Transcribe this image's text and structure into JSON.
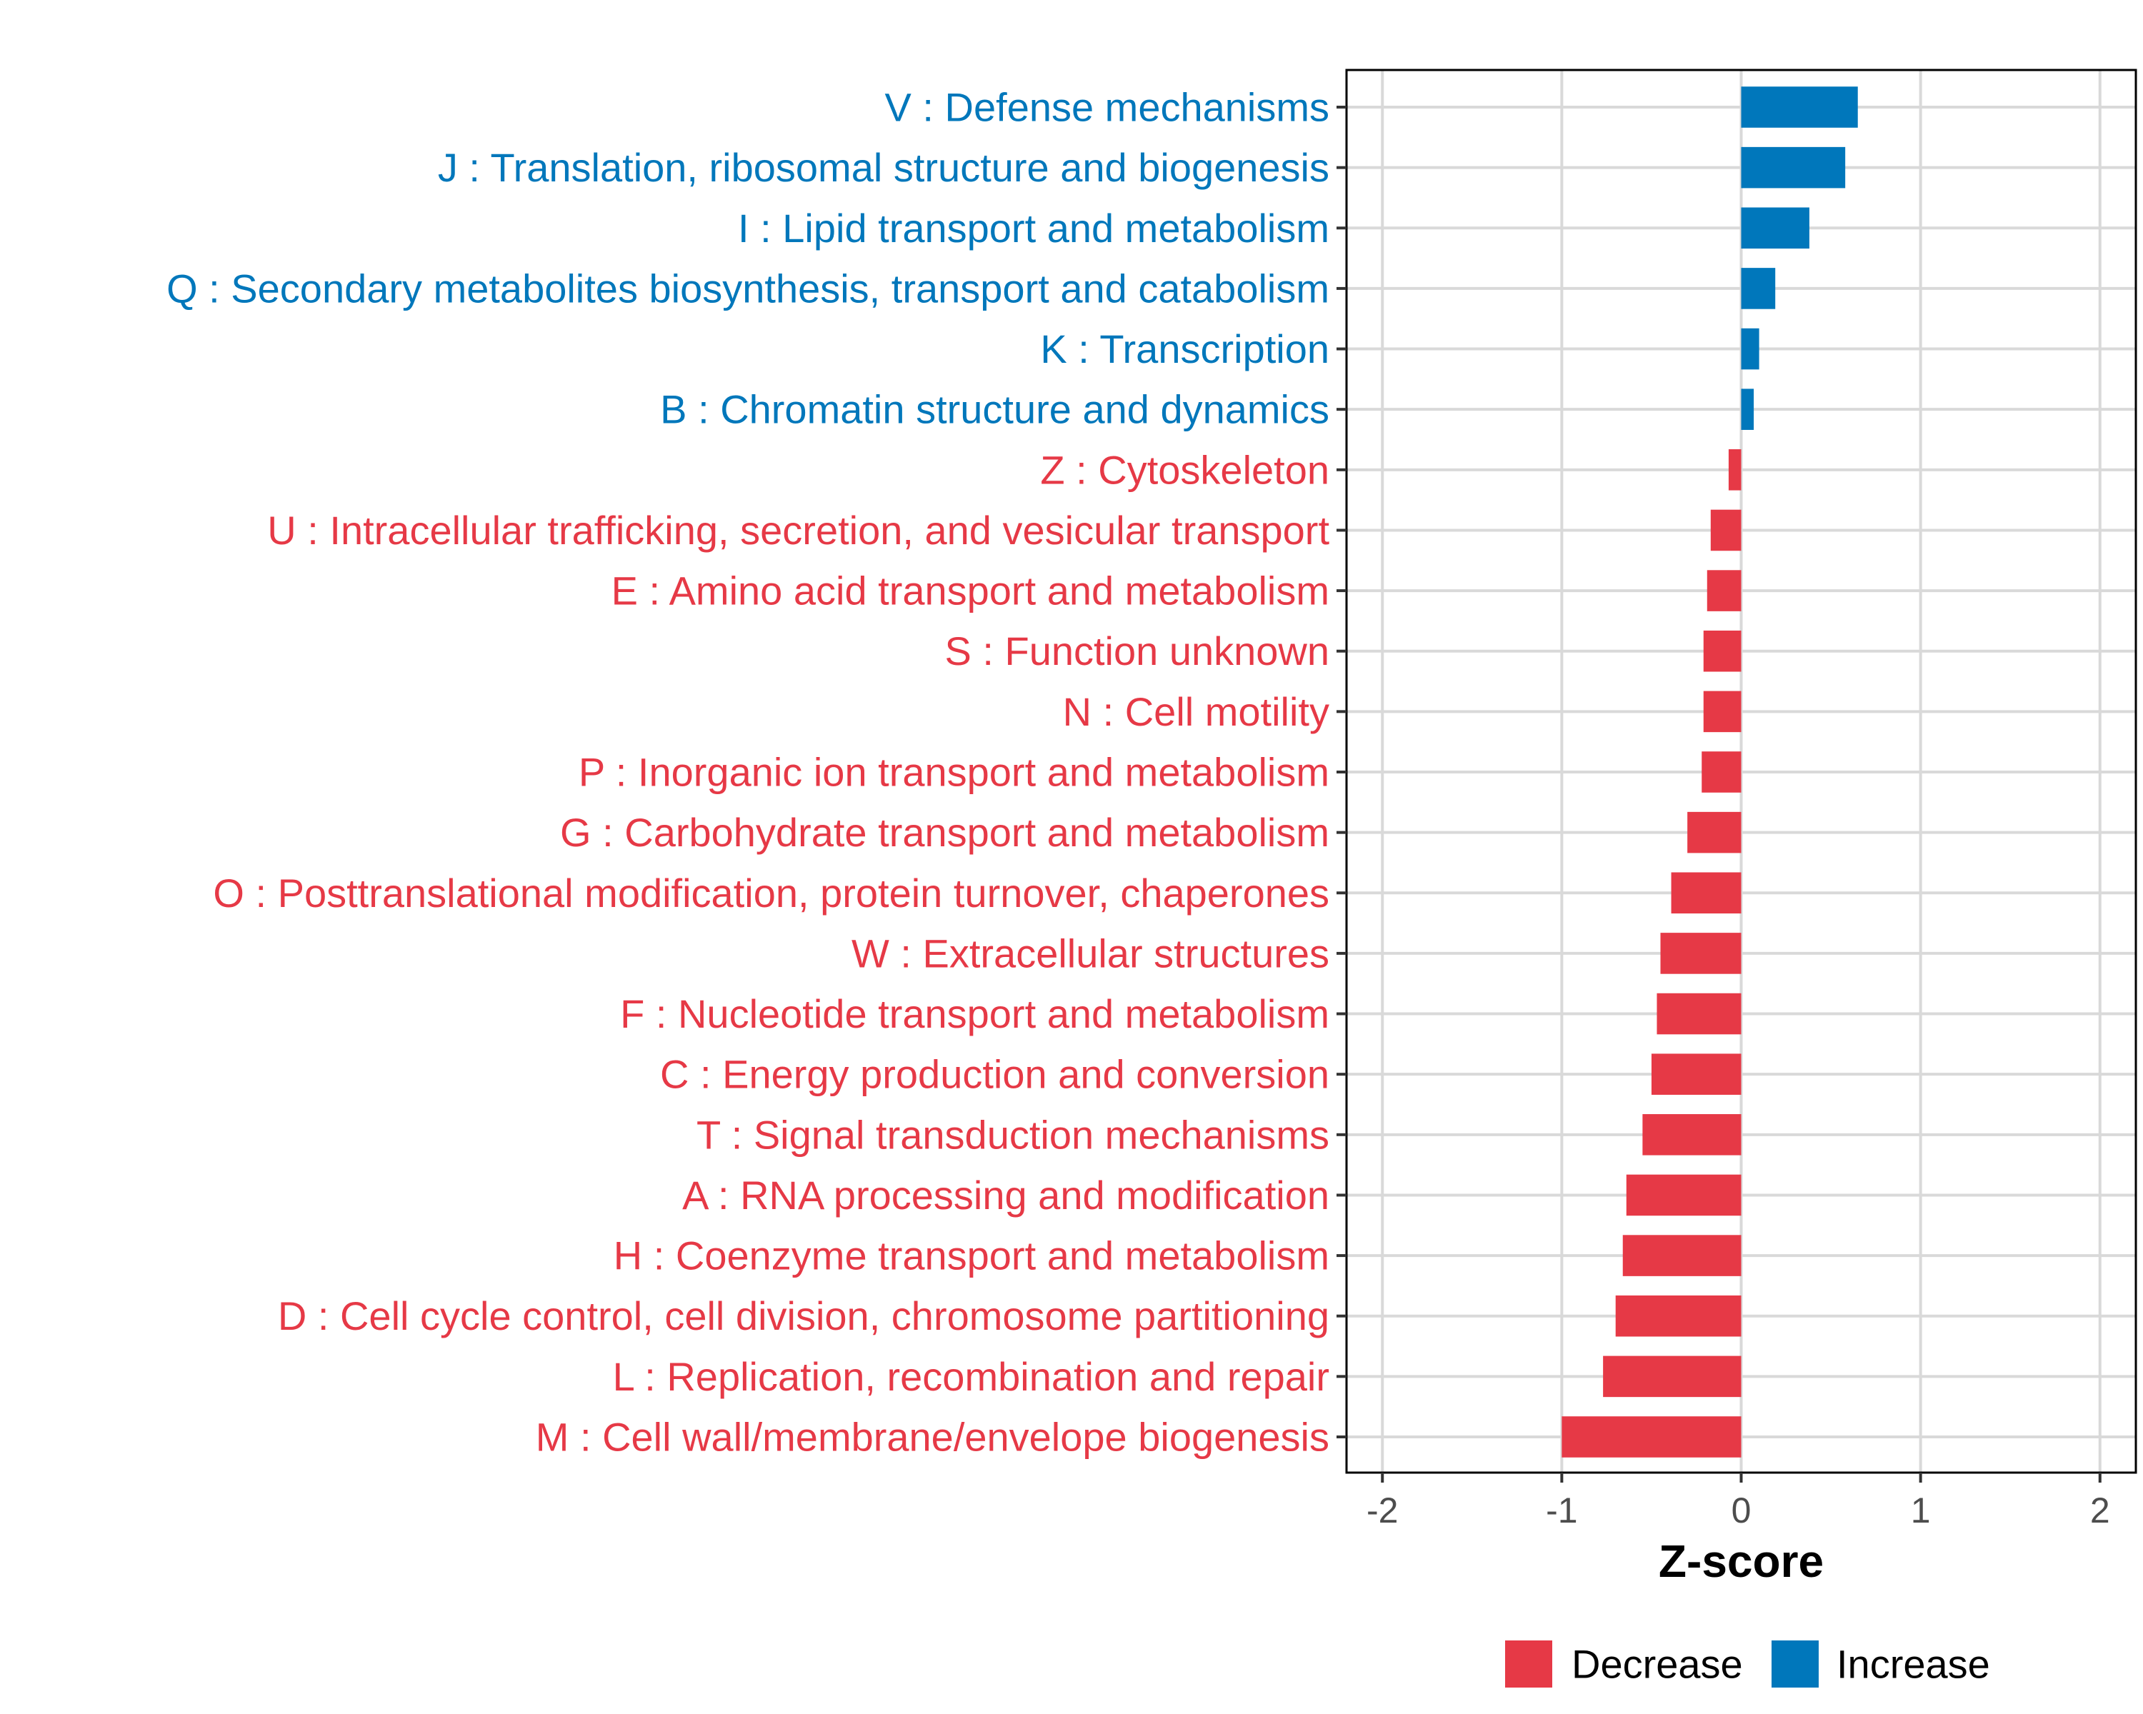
{
  "chart_data": {
    "type": "bar",
    "orientation": "horizontal",
    "xlabel": "Z-score",
    "xlim": [
      -2.2,
      2.2
    ],
    "xticks": [
      -2,
      -1,
      0,
      1,
      2
    ],
    "tick_labels": [
      "-2",
      "-1",
      "0",
      "1",
      "2"
    ],
    "grid": true,
    "legend_position": "bottom",
    "categories": [
      "V : Defense mechanisms",
      "J : Translation, ribosomal structure and biogenesis",
      "I : Lipid transport and metabolism",
      "Q : Secondary metabolites biosynthesis, transport and catabolism",
      "K : Transcription",
      "B : Chromatin structure and dynamics",
      "Z : Cytoskeleton",
      "U : Intracellular trafficking, secretion, and vesicular transport",
      "E : Amino acid transport and metabolism",
      "S : Function unknown",
      "N : Cell motility",
      "P : Inorganic ion transport and metabolism",
      "G : Carbohydrate transport and metabolism",
      "O : Posttranslational modification, protein turnover, chaperones",
      "W : Extracellular structures",
      "F : Nucleotide transport and metabolism",
      "C : Energy production and conversion",
      "T : Signal transduction mechanisms",
      "A : RNA processing and modification",
      "H : Coenzyme transport and metabolism",
      "D : Cell cycle control, cell division, chromosome partitioning",
      "L : Replication, recombination and repair",
      "M : Cell wall/membrane/envelope biogenesis"
    ],
    "values": [
      0.65,
      0.58,
      0.38,
      0.19,
      0.1,
      0.07,
      -0.07,
      -0.17,
      -0.19,
      -0.21,
      -0.21,
      -0.22,
      -0.3,
      -0.39,
      -0.45,
      -0.47,
      -0.5,
      -0.55,
      -0.64,
      -0.66,
      -0.7,
      -0.77,
      -1.0
    ],
    "groups": [
      "Increase",
      "Increase",
      "Increase",
      "Increase",
      "Increase",
      "Increase",
      "Decrease",
      "Decrease",
      "Decrease",
      "Decrease",
      "Decrease",
      "Decrease",
      "Decrease",
      "Decrease",
      "Decrease",
      "Decrease",
      "Decrease",
      "Decrease",
      "Decrease",
      "Decrease",
      "Decrease",
      "Decrease",
      "Decrease"
    ],
    "legend": [
      {
        "name": "Decrease",
        "color": "#E63946"
      },
      {
        "name": "Increase",
        "color": "#0077BB"
      }
    ]
  }
}
